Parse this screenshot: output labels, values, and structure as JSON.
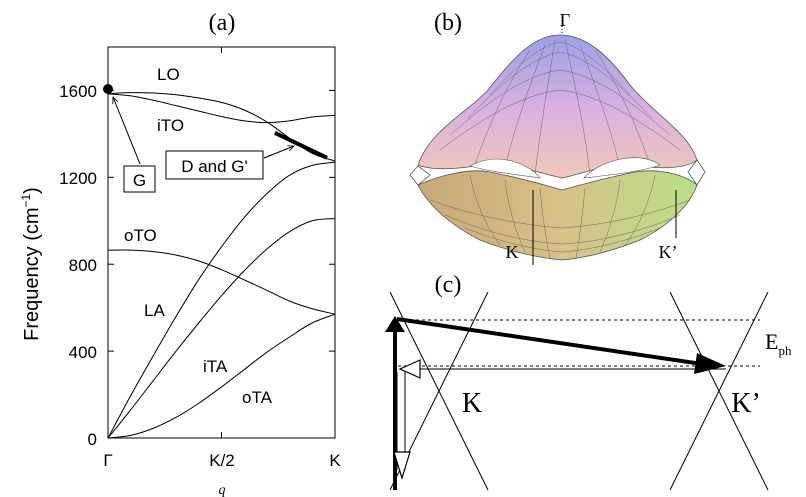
{
  "panel_a": {
    "label": "(a)",
    "chart_data": {
      "type": "line",
      "ylabel_main": "Frequency (cm",
      "ylabel_sup": "−1",
      "ylabel_end": ")",
      "xlabel": "q",
      "x_ticks": [
        "Γ",
        "K/2",
        "K"
      ],
      "y_ticks": [
        "0",
        "400",
        "800",
        "1200",
        "1600"
      ],
      "xlim": [
        0,
        1
      ],
      "ylim": [
        0,
        1800
      ],
      "series": [
        {
          "name": "LO",
          "x": [
            0,
            0.1,
            0.2,
            0.3,
            0.4,
            0.5,
            0.6,
            0.7,
            0.8,
            0.9,
            1.0
          ],
          "y": [
            1585,
            1590,
            1588,
            1580,
            1565,
            1545,
            1510,
            1455,
            1380,
            1310,
            1275
          ]
        },
        {
          "name": "iTO",
          "x": [
            0,
            0.1,
            0.2,
            0.3,
            0.4,
            0.5,
            0.6,
            0.7,
            0.8,
            0.9,
            1.0
          ],
          "y": [
            1585,
            1575,
            1555,
            1530,
            1505,
            1480,
            1460,
            1452,
            1460,
            1478,
            1485
          ]
        },
        {
          "name": "oTO",
          "x": [
            0,
            0.1,
            0.2,
            0.3,
            0.4,
            0.5,
            0.6,
            0.7,
            0.8,
            0.9,
            1.0
          ],
          "y": [
            865,
            865,
            858,
            842,
            815,
            775,
            728,
            680,
            630,
            595,
            570
          ]
        },
        {
          "name": "LA",
          "x": [
            0,
            0.1,
            0.2,
            0.3,
            0.4,
            0.5,
            0.6,
            0.7,
            0.8,
            0.9,
            1.0
          ],
          "y": [
            0,
            195,
            380,
            560,
            730,
            880,
            1015,
            1125,
            1210,
            1255,
            1270
          ]
        },
        {
          "name": "iTA",
          "x": [
            0,
            0.1,
            0.2,
            0.3,
            0.4,
            0.5,
            0.6,
            0.7,
            0.8,
            0.9,
            1.0
          ],
          "y": [
            0,
            130,
            265,
            400,
            530,
            655,
            770,
            870,
            950,
            1000,
            1010
          ]
        },
        {
          "name": "oTA",
          "x": [
            0,
            0.1,
            0.2,
            0.3,
            0.4,
            0.5,
            0.6,
            0.7,
            0.8,
            0.9,
            1.0
          ],
          "y": [
            0,
            12,
            45,
            95,
            160,
            235,
            315,
            395,
            465,
            530,
            570
          ]
        }
      ],
      "highlight_segment": {
        "x": [
          0.735,
          0.965
        ],
        "y": [
          1405,
          1290
        ]
      },
      "g_point": {
        "x": 0,
        "y": 1585
      },
      "curve_labels": [
        "LO",
        "iTO",
        "oTO",
        "LA",
        "iTA",
        "oTA"
      ],
      "annotations": {
        "g": "G",
        "dg": "D and G'"
      }
    }
  },
  "panel_b": {
    "label": "(b)",
    "gamma": "Γ",
    "k": "K",
    "kp": "K’"
  },
  "panel_c": {
    "label": "(c)",
    "k": "K",
    "kp": "K’",
    "eph_main": "E",
    "eph_sub": "ph"
  }
}
